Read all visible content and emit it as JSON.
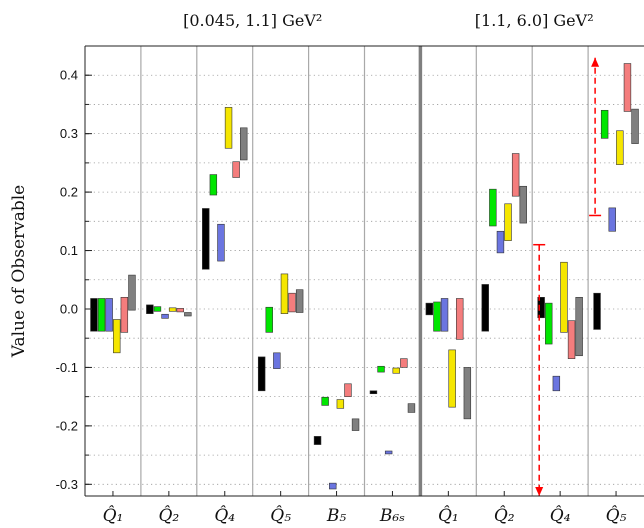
{
  "chart_data": {
    "type": "floating-bar",
    "ylabel": "Value of Observable",
    "ylim": [
      -0.32,
      0.45
    ],
    "yticks": [
      -0.3,
      -0.2,
      -0.1,
      0.0,
      0.1,
      0.2,
      0.3,
      0.4
    ],
    "ytick_labels": [
      "-0.3",
      "-0.2",
      "-0.1",
      "0.0",
      "0.1",
      "0.2",
      "0.3",
      "0.4"
    ],
    "grid": true,
    "regions": [
      {
        "label": "[0.045, 1.1] GeV²"
      },
      {
        "label": "[1.1, 6.0] GeV²"
      }
    ],
    "series_colors": [
      "#000000",
      "#00e600",
      "#6b75e0",
      "#f5e600",
      "#f47d7d",
      "#808080"
    ],
    "categories": [
      {
        "label": "Q̂₁",
        "region": 0,
        "bars": [
          [
            -0.038,
            0.018
          ],
          [
            -0.038,
            0.018
          ],
          [
            -0.038,
            0.018
          ],
          [
            -0.075,
            -0.018
          ],
          [
            -0.04,
            0.02
          ],
          [
            -0.002,
            0.058
          ]
        ]
      },
      {
        "label": "Q̂₂",
        "region": 0,
        "bars": [
          [
            -0.008,
            0.007
          ],
          [
            -0.004,
            0.004
          ],
          [
            -0.016,
            -0.009
          ],
          [
            -0.004,
            0.002
          ],
          [
            -0.005,
            0.001
          ],
          [
            -0.012,
            -0.006
          ]
        ]
      },
      {
        "label": "Q̂₄",
        "region": 0,
        "bars": [
          [
            0.068,
            0.172
          ],
          [
            0.195,
            0.23
          ],
          [
            0.082,
            0.145
          ],
          [
            0.275,
            0.345
          ],
          [
            0.225,
            0.252
          ],
          [
            0.255,
            0.31
          ]
        ]
      },
      {
        "label": "Q̂₅",
        "region": 0,
        "bars": [
          [
            -0.14,
            -0.082
          ],
          [
            -0.04,
            0.003
          ],
          [
            -0.102,
            -0.075
          ],
          [
            -0.008,
            0.06
          ],
          [
            -0.005,
            0.027
          ],
          [
            -0.006,
            0.033
          ]
        ]
      },
      {
        "label": "B₅",
        "region": 0,
        "bars": [
          [
            -0.232,
            -0.218
          ],
          [
            -0.165,
            -0.151
          ],
          [
            -0.308,
            -0.298
          ],
          [
            -0.17,
            -0.155
          ],
          [
            -0.15,
            -0.128
          ],
          [
            -0.208,
            -0.188
          ]
        ]
      },
      {
        "label": "B₆ₛ",
        "region": 0,
        "bars": [
          [
            -0.145,
            -0.14
          ],
          [
            -0.108,
            -0.098
          ],
          [
            -0.248,
            -0.243
          ],
          [
            -0.11,
            -0.101
          ],
          [
            -0.1,
            -0.085
          ],
          [
            -0.177,
            -0.162
          ]
        ]
      },
      {
        "label": "Q̂₁",
        "region": 1,
        "bars": [
          [
            -0.01,
            0.01
          ],
          [
            -0.038,
            0.012
          ],
          [
            -0.038,
            0.018
          ],
          [
            -0.168,
            -0.07
          ],
          [
            -0.052,
            0.018
          ],
          [
            -0.188,
            -0.1
          ]
        ]
      },
      {
        "label": "Q̂₂",
        "region": 1,
        "bars": [
          [
            -0.038,
            0.042
          ],
          [
            0.142,
            0.205
          ],
          [
            0.096,
            0.133
          ],
          [
            0.117,
            0.18
          ],
          [
            0.193,
            0.266
          ],
          [
            0.147,
            0.21
          ]
        ]
      },
      {
        "label": "Q̂₄",
        "region": 1,
        "bars": [
          [
            -0.015,
            0.02
          ],
          [
            -0.06,
            0.01
          ],
          [
            -0.14,
            -0.115
          ],
          [
            -0.04,
            0.08
          ],
          [
            -0.085,
            -0.02
          ],
          [
            -0.08,
            0.02
          ]
        ]
      },
      {
        "label": "Q̂₅",
        "region": 1,
        "bars": [
          [
            -0.035,
            0.027
          ],
          [
            0.292,
            0.34
          ],
          [
            0.133,
            0.173
          ],
          [
            0.247,
            0.305
          ],
          [
            0.338,
            0.42
          ],
          [
            0.283,
            0.342
          ]
        ]
      }
    ],
    "error_bars": [
      {
        "category_index": 8,
        "low": -0.32,
        "high": 0.11,
        "color": "#ff0000",
        "style": "dashed"
      },
      {
        "category_index": 9,
        "low": 0.16,
        "high": 0.43,
        "color": "#ff0000",
        "style": "dashed"
      }
    ]
  }
}
